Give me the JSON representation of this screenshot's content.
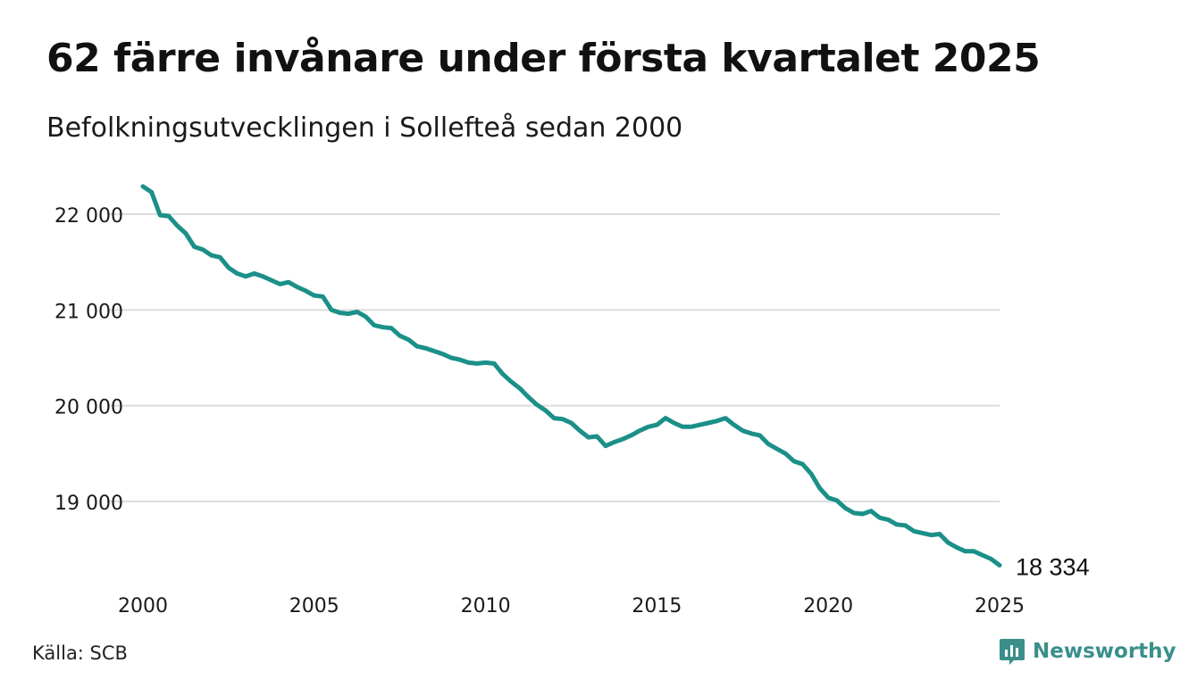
{
  "title": "62 färre invånare under första kvartalet 2025",
  "subtitle": "Befolkningsutvecklingen i Sollefteå sedan 2000",
  "source": "Källa: SCB",
  "brand": "Newsworthy",
  "colors": {
    "line": "#1a9088",
    "grid": "#dddddd",
    "brand": "#3a8f8a"
  },
  "chart_data": {
    "type": "line",
    "x_start": 2000.0,
    "x_step": 0.25,
    "xlim": [
      2000,
      2025
    ],
    "ylim": [
      18200,
      22350
    ],
    "x_ticks": [
      2000,
      2005,
      2010,
      2015,
      2020,
      2025
    ],
    "y_ticks": [
      19000,
      20000,
      21000,
      22000
    ],
    "y_tick_labels": [
      "19 000",
      "20 000",
      "21 000",
      "22 000"
    ],
    "end_label": "18 334",
    "grid": true,
    "values": [
      22290,
      22230,
      21990,
      21980,
      21880,
      21800,
      21660,
      21630,
      21570,
      21550,
      21440,
      21380,
      21350,
      21380,
      21350,
      21310,
      21270,
      21290,
      21240,
      21200,
      21150,
      21140,
      21000,
      20970,
      20960,
      20980,
      20930,
      20840,
      20820,
      20810,
      20730,
      20690,
      20620,
      20600,
      20570,
      20540,
      20500,
      20480,
      20450,
      20440,
      20450,
      20440,
      20330,
      20250,
      20180,
      20090,
      20010,
      19950,
      19870,
      19860,
      19820,
      19740,
      19670,
      19680,
      19580,
      19620,
      19650,
      19690,
      19740,
      19780,
      19800,
      19870,
      19820,
      19780,
      19780,
      19800,
      19820,
      19840,
      19870,
      19800,
      19740,
      19710,
      19690,
      19600,
      19550,
      19500,
      19420,
      19390,
      19290,
      19140,
      19040,
      19010,
      18930,
      18880,
      18870,
      18900,
      18830,
      18810,
      18760,
      18750,
      18690,
      18670,
      18650,
      18660,
      18570,
      18520,
      18480,
      18480,
      18440,
      18400,
      18334
    ]
  }
}
